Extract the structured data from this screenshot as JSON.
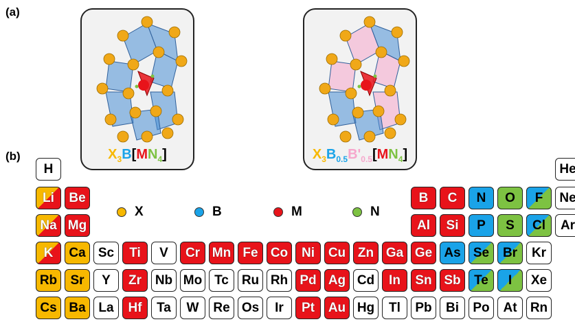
{
  "figure": {
    "label_a": "(a)",
    "label_b": "(b)",
    "colors": {
      "X": "#f7b800",
      "B": "#1aa3e8",
      "M": "#e8131a",
      "N": "#7dc242",
      "Bprime": "#f6a7cc",
      "bracket": "#000000"
    },
    "formula1": {
      "X": "X",
      "x_sub": "3",
      "B": "B",
      "open": "[",
      "M": "M",
      "N": "N",
      "n_sub": "4",
      "close": "]"
    },
    "formula2": {
      "X": "X",
      "x_sub": "3",
      "B": "B",
      "b_sub": "0.5",
      "Bp": "B'",
      "bp_sub": "0.5",
      "open": "[",
      "M": "M",
      "N": "N",
      "n_sub": "4",
      "close": "]"
    },
    "legend": [
      "X",
      "B",
      "M",
      "N"
    ]
  },
  "periodic_table": {
    "cells": [
      {
        "symbol": "H",
        "role": "none"
      },
      {
        "symbol": "He",
        "role": "none"
      },
      {
        "symbol": "Li",
        "role": "X/M"
      },
      {
        "symbol": "Be",
        "role": "M"
      },
      {
        "symbol": "B",
        "role": "M"
      },
      {
        "symbol": "C",
        "role": "M"
      },
      {
        "symbol": "N",
        "role": "B"
      },
      {
        "symbol": "O",
        "role": "N"
      },
      {
        "symbol": "F",
        "role": "B/N"
      },
      {
        "symbol": "Ne",
        "role": "none"
      },
      {
        "symbol": "Na",
        "role": "X/M"
      },
      {
        "symbol": "Mg",
        "role": "M"
      },
      {
        "symbol": "Al",
        "role": "M"
      },
      {
        "symbol": "Si",
        "role": "M"
      },
      {
        "symbol": "P",
        "role": "B"
      },
      {
        "symbol": "S",
        "role": "N"
      },
      {
        "symbol": "Cl",
        "role": "B/N"
      },
      {
        "symbol": "Ar",
        "role": "none"
      },
      {
        "symbol": "K",
        "role": "X/M"
      },
      {
        "symbol": "Ca",
        "role": "X"
      },
      {
        "symbol": "Sc",
        "role": "none"
      },
      {
        "symbol": "Ti",
        "role": "M"
      },
      {
        "symbol": "V",
        "role": "none"
      },
      {
        "symbol": "Cr",
        "role": "M"
      },
      {
        "symbol": "Mn",
        "role": "M"
      },
      {
        "symbol": "Fe",
        "role": "M"
      },
      {
        "symbol": "Co",
        "role": "M"
      },
      {
        "symbol": "Ni",
        "role": "M"
      },
      {
        "symbol": "Cu",
        "role": "M"
      },
      {
        "symbol": "Zn",
        "role": "M"
      },
      {
        "symbol": "Ga",
        "role": "M"
      },
      {
        "symbol": "Ge",
        "role": "M"
      },
      {
        "symbol": "As",
        "role": "B"
      },
      {
        "symbol": "Se",
        "role": "B/N"
      },
      {
        "symbol": "Br",
        "role": "B/N"
      },
      {
        "symbol": "Kr",
        "role": "none"
      },
      {
        "symbol": "Rb",
        "role": "X"
      },
      {
        "symbol": "Sr",
        "role": "X"
      },
      {
        "symbol": "Y",
        "role": "none"
      },
      {
        "symbol": "Zr",
        "role": "M"
      },
      {
        "symbol": "Nb",
        "role": "none"
      },
      {
        "symbol": "Mo",
        "role": "none"
      },
      {
        "symbol": "Tc",
        "role": "none"
      },
      {
        "symbol": "Ru",
        "role": "none"
      },
      {
        "symbol": "Rh",
        "role": "none"
      },
      {
        "symbol": "Pd",
        "role": "M"
      },
      {
        "symbol": "Ag",
        "role": "M"
      },
      {
        "symbol": "Cd",
        "role": "none"
      },
      {
        "symbol": "In",
        "role": "M"
      },
      {
        "symbol": "Sn",
        "role": "M"
      },
      {
        "symbol": "Sb",
        "role": "M"
      },
      {
        "symbol": "Te",
        "role": "B/N"
      },
      {
        "symbol": "I",
        "role": "B/N"
      },
      {
        "symbol": "Xe",
        "role": "none"
      },
      {
        "symbol": "Cs",
        "role": "X"
      },
      {
        "symbol": "Ba",
        "role": "X"
      },
      {
        "symbol": "La",
        "role": "none"
      },
      {
        "symbol": "Hf",
        "role": "M"
      },
      {
        "symbol": "Ta",
        "role": "none"
      },
      {
        "symbol": "W",
        "role": "none"
      },
      {
        "symbol": "Re",
        "role": "none"
      },
      {
        "symbol": "Os",
        "role": "none"
      },
      {
        "symbol": "Ir",
        "role": "none"
      },
      {
        "symbol": "Pt",
        "role": "M"
      },
      {
        "symbol": "Au",
        "role": "M"
      },
      {
        "symbol": "Hg",
        "role": "none"
      },
      {
        "symbol": "Tl",
        "role": "none"
      },
      {
        "symbol": "Pb",
        "role": "none"
      },
      {
        "symbol": "Bi",
        "role": "none"
      },
      {
        "symbol": "Po",
        "role": "none"
      },
      {
        "symbol": "At",
        "role": "none"
      },
      {
        "symbol": "Rn",
        "role": "none"
      }
    ]
  }
}
